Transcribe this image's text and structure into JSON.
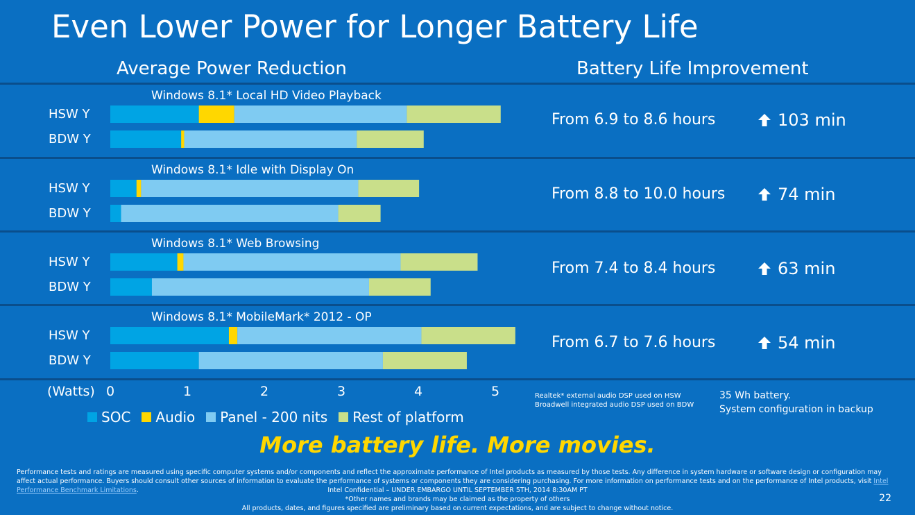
{
  "title": "Even Lower Power for Longer Battery Life",
  "headers": {
    "left": "Average Power Reduction",
    "right": "Battery Life Improvement"
  },
  "chart_data": {
    "type": "bar",
    "orientation": "horizontal",
    "stacked": true,
    "xlabel": "(Watts)",
    "xlim": [
      0,
      5
    ],
    "xticks": [
      "0",
      "1",
      "2",
      "3",
      "4",
      "5"
    ],
    "segment_names": [
      "SOC",
      "Audio",
      "Panel - 200 nits",
      "Rest of platform"
    ],
    "colors": {
      "SOC": "#00a4e4",
      "Audio": "#ffd700",
      "Panel - 200 nits": "#7fcbf2",
      "Rest of platform": "#c9df8a"
    },
    "groups": [
      {
        "title": "Windows 8.1* Local HD Video Playback",
        "bars": [
          {
            "label": "HSW Y",
            "values": [
              1.15,
              0.46,
              2.24,
              1.22
            ]
          },
          {
            "label": "BDW Y",
            "values": [
              0.92,
              0.04,
              2.24,
              0.87
            ]
          }
        ]
      },
      {
        "title": "Windows 8.1* Idle with Display On",
        "bars": [
          {
            "label": "HSW Y",
            "values": [
              0.34,
              0.06,
              2.82,
              0.79
            ]
          },
          {
            "label": "BDW Y",
            "values": [
              0.14,
              0.0,
              2.82,
              0.55
            ]
          }
        ]
      },
      {
        "title": "Windows 8.1* Web Browsing",
        "bars": [
          {
            "label": "HSW Y",
            "values": [
              0.87,
              0.08,
              2.82,
              1.0
            ]
          },
          {
            "label": "BDW Y",
            "values": [
              0.54,
              0.0,
              2.82,
              0.8
            ]
          }
        ]
      },
      {
        "title": "Windows 8.1* MobileMark* 2012 - OP",
        "bars": [
          {
            "label": "HSW Y",
            "values": [
              1.54,
              0.11,
              2.39,
              1.22
            ]
          },
          {
            "label": "BDW Y",
            "values": [
              1.15,
              0.0,
              2.39,
              1.09
            ]
          }
        ]
      }
    ]
  },
  "improvements": [
    {
      "from": "From 6.9 to 8.6 hours",
      "gain": "103 min"
    },
    {
      "from": "From 8.8 to 10.0 hours",
      "gain": "74 min"
    },
    {
      "from": "From 7.4 to 8.4 hours",
      "gain": "63 min"
    },
    {
      "from": "From 6.7 to 7.6 hours",
      "gain": "54 min"
    }
  ],
  "legend": [
    "SOC",
    "Audio",
    "Panel - 200 nits",
    "Rest of platform"
  ],
  "notes": {
    "audio_line1": "Realtek* external audio DSP used on HSW",
    "audio_line2": "Broadwell integrated audio DSP used on BDW",
    "battery_line1": "35 Wh battery.",
    "battery_line2": "System configuration in backup"
  },
  "tagline": "More battery life.  More movies.",
  "disclaimer": {
    "text": "Performance tests and ratings are measured using specific computer systems and/or components and reflect the approximate performance of Intel products as measured by those tests. Any difference in system hardware or software design or configuration may affect actual performance. Buyers should consult other sources of information to evaluate the performance of systems or components they are considering purchasing. For more information on performance tests and on the performance of Intel products, visit ",
    "link": "Intel Performance Benchmark Limitations",
    "tail": "."
  },
  "confidential": {
    "line1": "Intel Confidential – UNDER EMBARGO UNTIL  SEPTEMBER 5TH, 2014 8:30AM PT",
    "line2": "*Other names and brands may be claimed as the property of others",
    "line3": "All products, dates, and figures specified are preliminary based on current expectations, and are subject to change without notice."
  },
  "page_number": "22"
}
